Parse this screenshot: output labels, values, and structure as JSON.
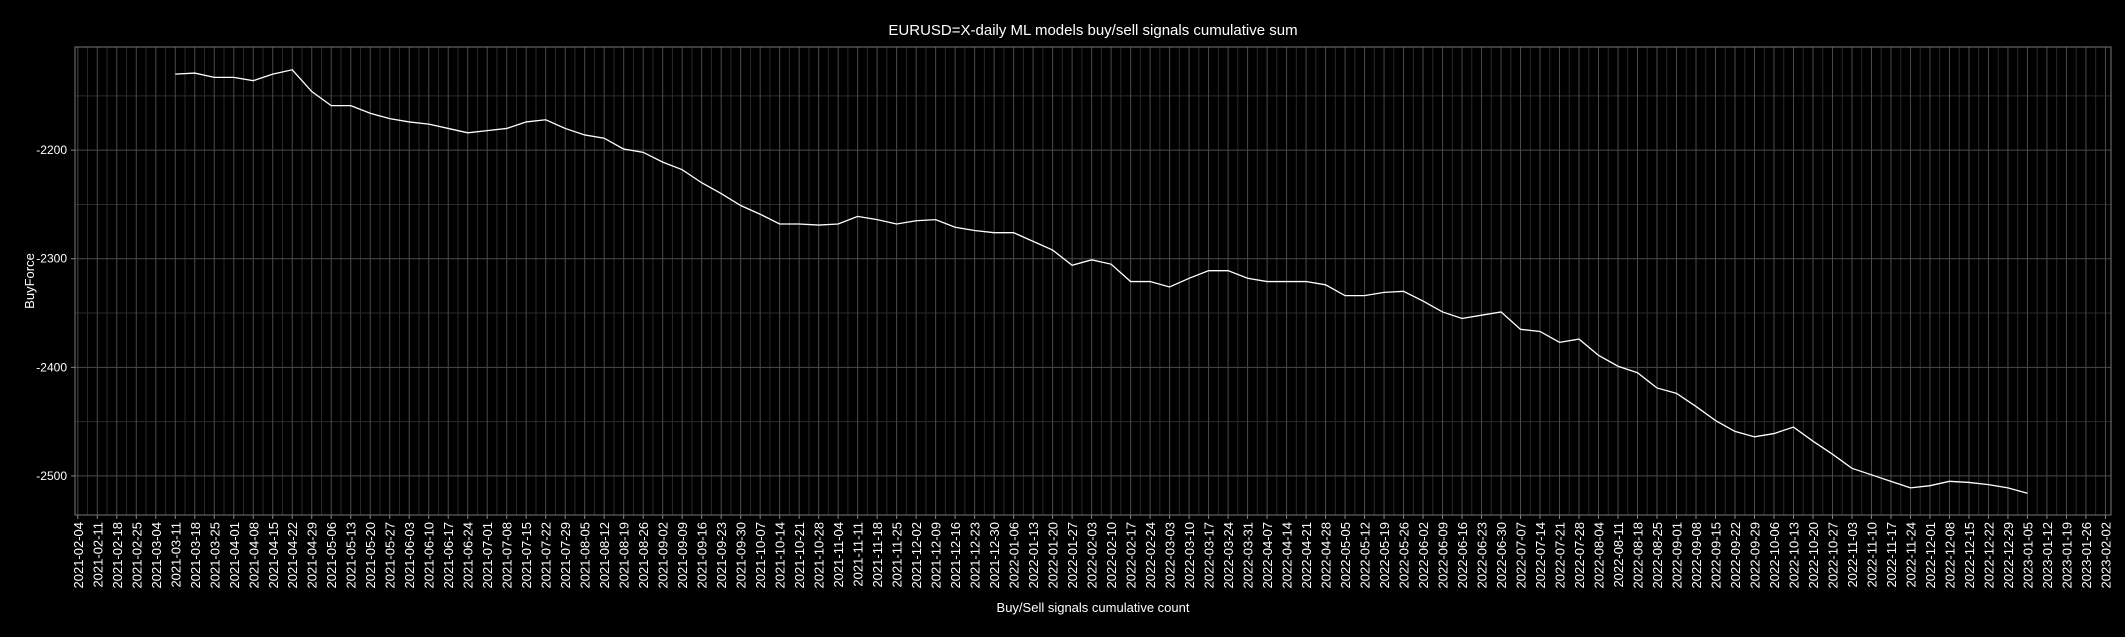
{
  "chart_data": {
    "type": "line",
    "title": "EURUSD=X-daily ML models buy/sell signals cumulative sum",
    "x_label": "Buy/Sell signals cumulative count",
    "y_label": "BuyForce",
    "xlim": [
      "2021-02-03",
      "2023-02-04"
    ],
    "ylim": [
      -2536,
      -2105
    ],
    "yticks": [
      -2200,
      -2300,
      -2400,
      -2500
    ],
    "grid": true,
    "xticks": [
      "2021-02-04",
      "2021-02-11",
      "2021-02-18",
      "2021-02-25",
      "2021-03-04",
      "2021-03-11",
      "2021-03-18",
      "2021-03-25",
      "2021-04-01",
      "2021-04-08",
      "2021-04-15",
      "2021-04-22",
      "2021-04-29",
      "2021-05-06",
      "2021-05-13",
      "2021-05-20",
      "2021-05-27",
      "2021-06-03",
      "2021-06-10",
      "2021-06-17",
      "2021-06-24",
      "2021-07-01",
      "2021-07-08",
      "2021-07-15",
      "2021-07-22",
      "2021-07-29",
      "2021-08-05",
      "2021-08-12",
      "2021-08-19",
      "2021-08-26",
      "2021-09-02",
      "2021-09-09",
      "2021-09-16",
      "2021-09-23",
      "2021-09-30",
      "2021-10-07",
      "2021-10-14",
      "2021-10-21",
      "2021-10-28",
      "2021-11-04",
      "2021-11-11",
      "2021-11-18",
      "2021-11-25",
      "2021-12-02",
      "2021-12-09",
      "2021-12-16",
      "2021-12-23",
      "2021-12-30",
      "2022-01-06",
      "2022-01-13",
      "2022-01-20",
      "2022-01-27",
      "2022-02-03",
      "2022-02-10",
      "2022-02-17",
      "2022-02-24",
      "2022-03-03",
      "2022-03-10",
      "2022-03-17",
      "2022-03-24",
      "2022-03-31",
      "2022-04-07",
      "2022-04-14",
      "2022-04-21",
      "2022-04-28",
      "2022-05-05",
      "2022-05-12",
      "2022-05-19",
      "2022-05-26",
      "2022-06-02",
      "2022-06-09",
      "2022-06-16",
      "2022-06-23",
      "2022-06-30",
      "2022-07-07",
      "2022-07-14",
      "2022-07-21",
      "2022-07-28",
      "2022-08-04",
      "2022-08-11",
      "2022-08-18",
      "2022-08-25",
      "2022-09-01",
      "2022-09-08",
      "2022-09-15",
      "2022-09-22",
      "2022-09-29",
      "2022-10-06",
      "2022-10-13",
      "2022-10-20",
      "2022-10-27",
      "2022-11-03",
      "2022-11-10",
      "2022-11-17",
      "2022-11-24",
      "2022-12-01",
      "2022-12-08",
      "2022-12-15",
      "2022-12-22",
      "2022-12-29",
      "2023-01-05",
      "2023-01-12",
      "2023-01-19",
      "2023-01-26",
      "2023-02-02"
    ],
    "x": [
      "2021-03-11",
      "2021-03-18",
      "2021-03-25",
      "2021-04-01",
      "2021-04-08",
      "2021-04-15",
      "2021-04-22",
      "2021-04-29",
      "2021-05-06",
      "2021-05-13",
      "2021-05-20",
      "2021-05-27",
      "2021-06-03",
      "2021-06-10",
      "2021-06-17",
      "2021-06-24",
      "2021-07-01",
      "2021-07-08",
      "2021-07-15",
      "2021-07-22",
      "2021-07-29",
      "2021-08-05",
      "2021-08-12",
      "2021-08-19",
      "2021-08-26",
      "2021-09-02",
      "2021-09-09",
      "2021-09-16",
      "2021-09-23",
      "2021-09-30",
      "2021-10-07",
      "2021-10-14",
      "2021-10-21",
      "2021-10-28",
      "2021-11-04",
      "2021-11-11",
      "2021-11-18",
      "2021-11-25",
      "2021-12-02",
      "2021-12-09",
      "2021-12-16",
      "2021-12-23",
      "2021-12-30",
      "2022-01-06",
      "2022-01-13",
      "2022-01-20",
      "2022-01-27",
      "2022-02-03",
      "2022-02-10",
      "2022-02-17",
      "2022-02-24",
      "2022-03-03",
      "2022-03-10",
      "2022-03-17",
      "2022-03-24",
      "2022-03-31",
      "2022-04-07",
      "2022-04-14",
      "2022-04-21",
      "2022-04-28",
      "2022-05-05",
      "2022-05-12",
      "2022-05-19",
      "2022-05-26",
      "2022-06-02",
      "2022-06-09",
      "2022-06-16",
      "2022-06-23",
      "2022-06-30",
      "2022-07-07",
      "2022-07-14",
      "2022-07-21",
      "2022-07-28",
      "2022-08-04",
      "2022-08-11",
      "2022-08-18",
      "2022-08-25",
      "2022-09-01",
      "2022-09-08",
      "2022-09-15",
      "2022-09-22",
      "2022-09-29",
      "2022-10-06",
      "2022-10-13",
      "2022-10-20",
      "2022-10-27",
      "2022-11-03",
      "2022-11-10",
      "2022-11-17",
      "2022-11-24",
      "2022-12-01",
      "2022-12-08",
      "2022-12-15",
      "2022-12-22",
      "2022-12-29",
      "2023-01-05"
    ],
    "series": [
      {
        "color": "#ffffff",
        "values": [
          -2130,
          -2129,
          -2133,
          -2133,
          -2136,
          -2130,
          -2126,
          -2146,
          -2159,
          -2159,
          -2166,
          -2171,
          -2174,
          -2176,
          -2180,
          -2184,
          -2182,
          -2180,
          -2174,
          -2172,
          -2180,
          -2186,
          -2189,
          -2199,
          -2202,
          -2211,
          -2218,
          -2230,
          -2240,
          -2251,
          -2259,
          -2268,
          -2268,
          -2269,
          -2268,
          -2261,
          -2264,
          -2268,
          -2265,
          -2264,
          -2271,
          -2274,
          -2276,
          -2276,
          -2284,
          -2292,
          -2306,
          -2301,
          -2305,
          -2321,
          -2321,
          -2326,
          -2318,
          -2311,
          -2311,
          -2318,
          -2321,
          -2321,
          -2321,
          -2324,
          -2334,
          -2334,
          -2331,
          -2330,
          -2339,
          -2349,
          -2355,
          -2352,
          -2349,
          -2365,
          -2367,
          -2377,
          -2374,
          -2389,
          -2399,
          -2405,
          -2419,
          -2424,
          -2436,
          -2449,
          -2459,
          -2464,
          -2461,
          -2455,
          -2468,
          -2480,
          -2493,
          -2499,
          -2505,
          -2511,
          -2509,
          -2505,
          -2506,
          -2508,
          -2511,
          -2516
        ]
      }
    ]
  }
}
